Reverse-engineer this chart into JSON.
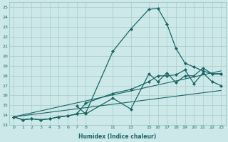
{
  "title": "",
  "xlabel": "Humidex (Indice chaleur)",
  "bg_color": "#cce8e8",
  "grid_color": "#aacccc",
  "line_color": "#1a6666",
  "xlim": [
    -0.5,
    23.5
  ],
  "ylim": [
    13,
    25.5
  ],
  "xticks": [
    0,
    1,
    2,
    3,
    4,
    5,
    6,
    7,
    8,
    11,
    13,
    15,
    16,
    17,
    18,
    19,
    20,
    21,
    22,
    23
  ],
  "yticks": [
    13,
    14,
    15,
    16,
    17,
    18,
    19,
    20,
    21,
    22,
    23,
    24,
    25
  ],
  "series": [
    {
      "x": [
        0,
        1,
        2,
        3,
        4,
        5,
        6,
        7,
        8,
        11,
        13,
        15,
        16,
        17,
        18,
        19,
        20,
        21,
        22,
        23
      ],
      "y": [
        13.8,
        13.5,
        13.6,
        13.5,
        13.6,
        13.8,
        13.9,
        14.1,
        14.2,
        20.5,
        22.8,
        24.8,
        24.9,
        23.3,
        20.8,
        19.3,
        18.9,
        18.5,
        18.2,
        18.2
      ],
      "marker": "D",
      "markersize": 2.0,
      "linewidth": 0.9
    },
    {
      "x": [
        0,
        1,
        2,
        3,
        4,
        5,
        6,
        7,
        8,
        11,
        13,
        15,
        16,
        17,
        18,
        19,
        20,
        21,
        22,
        23
      ],
      "y": [
        13.8,
        13.5,
        13.6,
        13.5,
        13.6,
        13.8,
        13.9,
        14.1,
        15.2,
        16.2,
        16.6,
        17.4,
        18.0,
        18.0,
        18.1,
        18.6,
        17.2,
        18.3,
        17.4,
        17.0
      ],
      "marker": "D",
      "markersize": 2.0,
      "linewidth": 0.9
    },
    {
      "x": [
        0,
        23
      ],
      "y": [
        13.8,
        18.5
      ],
      "marker": null,
      "markersize": 0,
      "linewidth": 0.8
    },
    {
      "x": [
        0,
        23
      ],
      "y": [
        13.8,
        16.5
      ],
      "marker": null,
      "markersize": 0,
      "linewidth": 0.8
    },
    {
      "x": [
        7,
        8,
        11,
        13,
        15,
        16,
        17,
        18,
        19,
        20,
        21,
        22,
        23
      ],
      "y": [
        14.9,
        14.1,
        15.7,
        14.6,
        18.2,
        17.4,
        18.3,
        17.3,
        18.0,
        18.0,
        18.8,
        18.2,
        18.2
      ],
      "marker": "D",
      "markersize": 2.0,
      "linewidth": 0.9
    }
  ]
}
